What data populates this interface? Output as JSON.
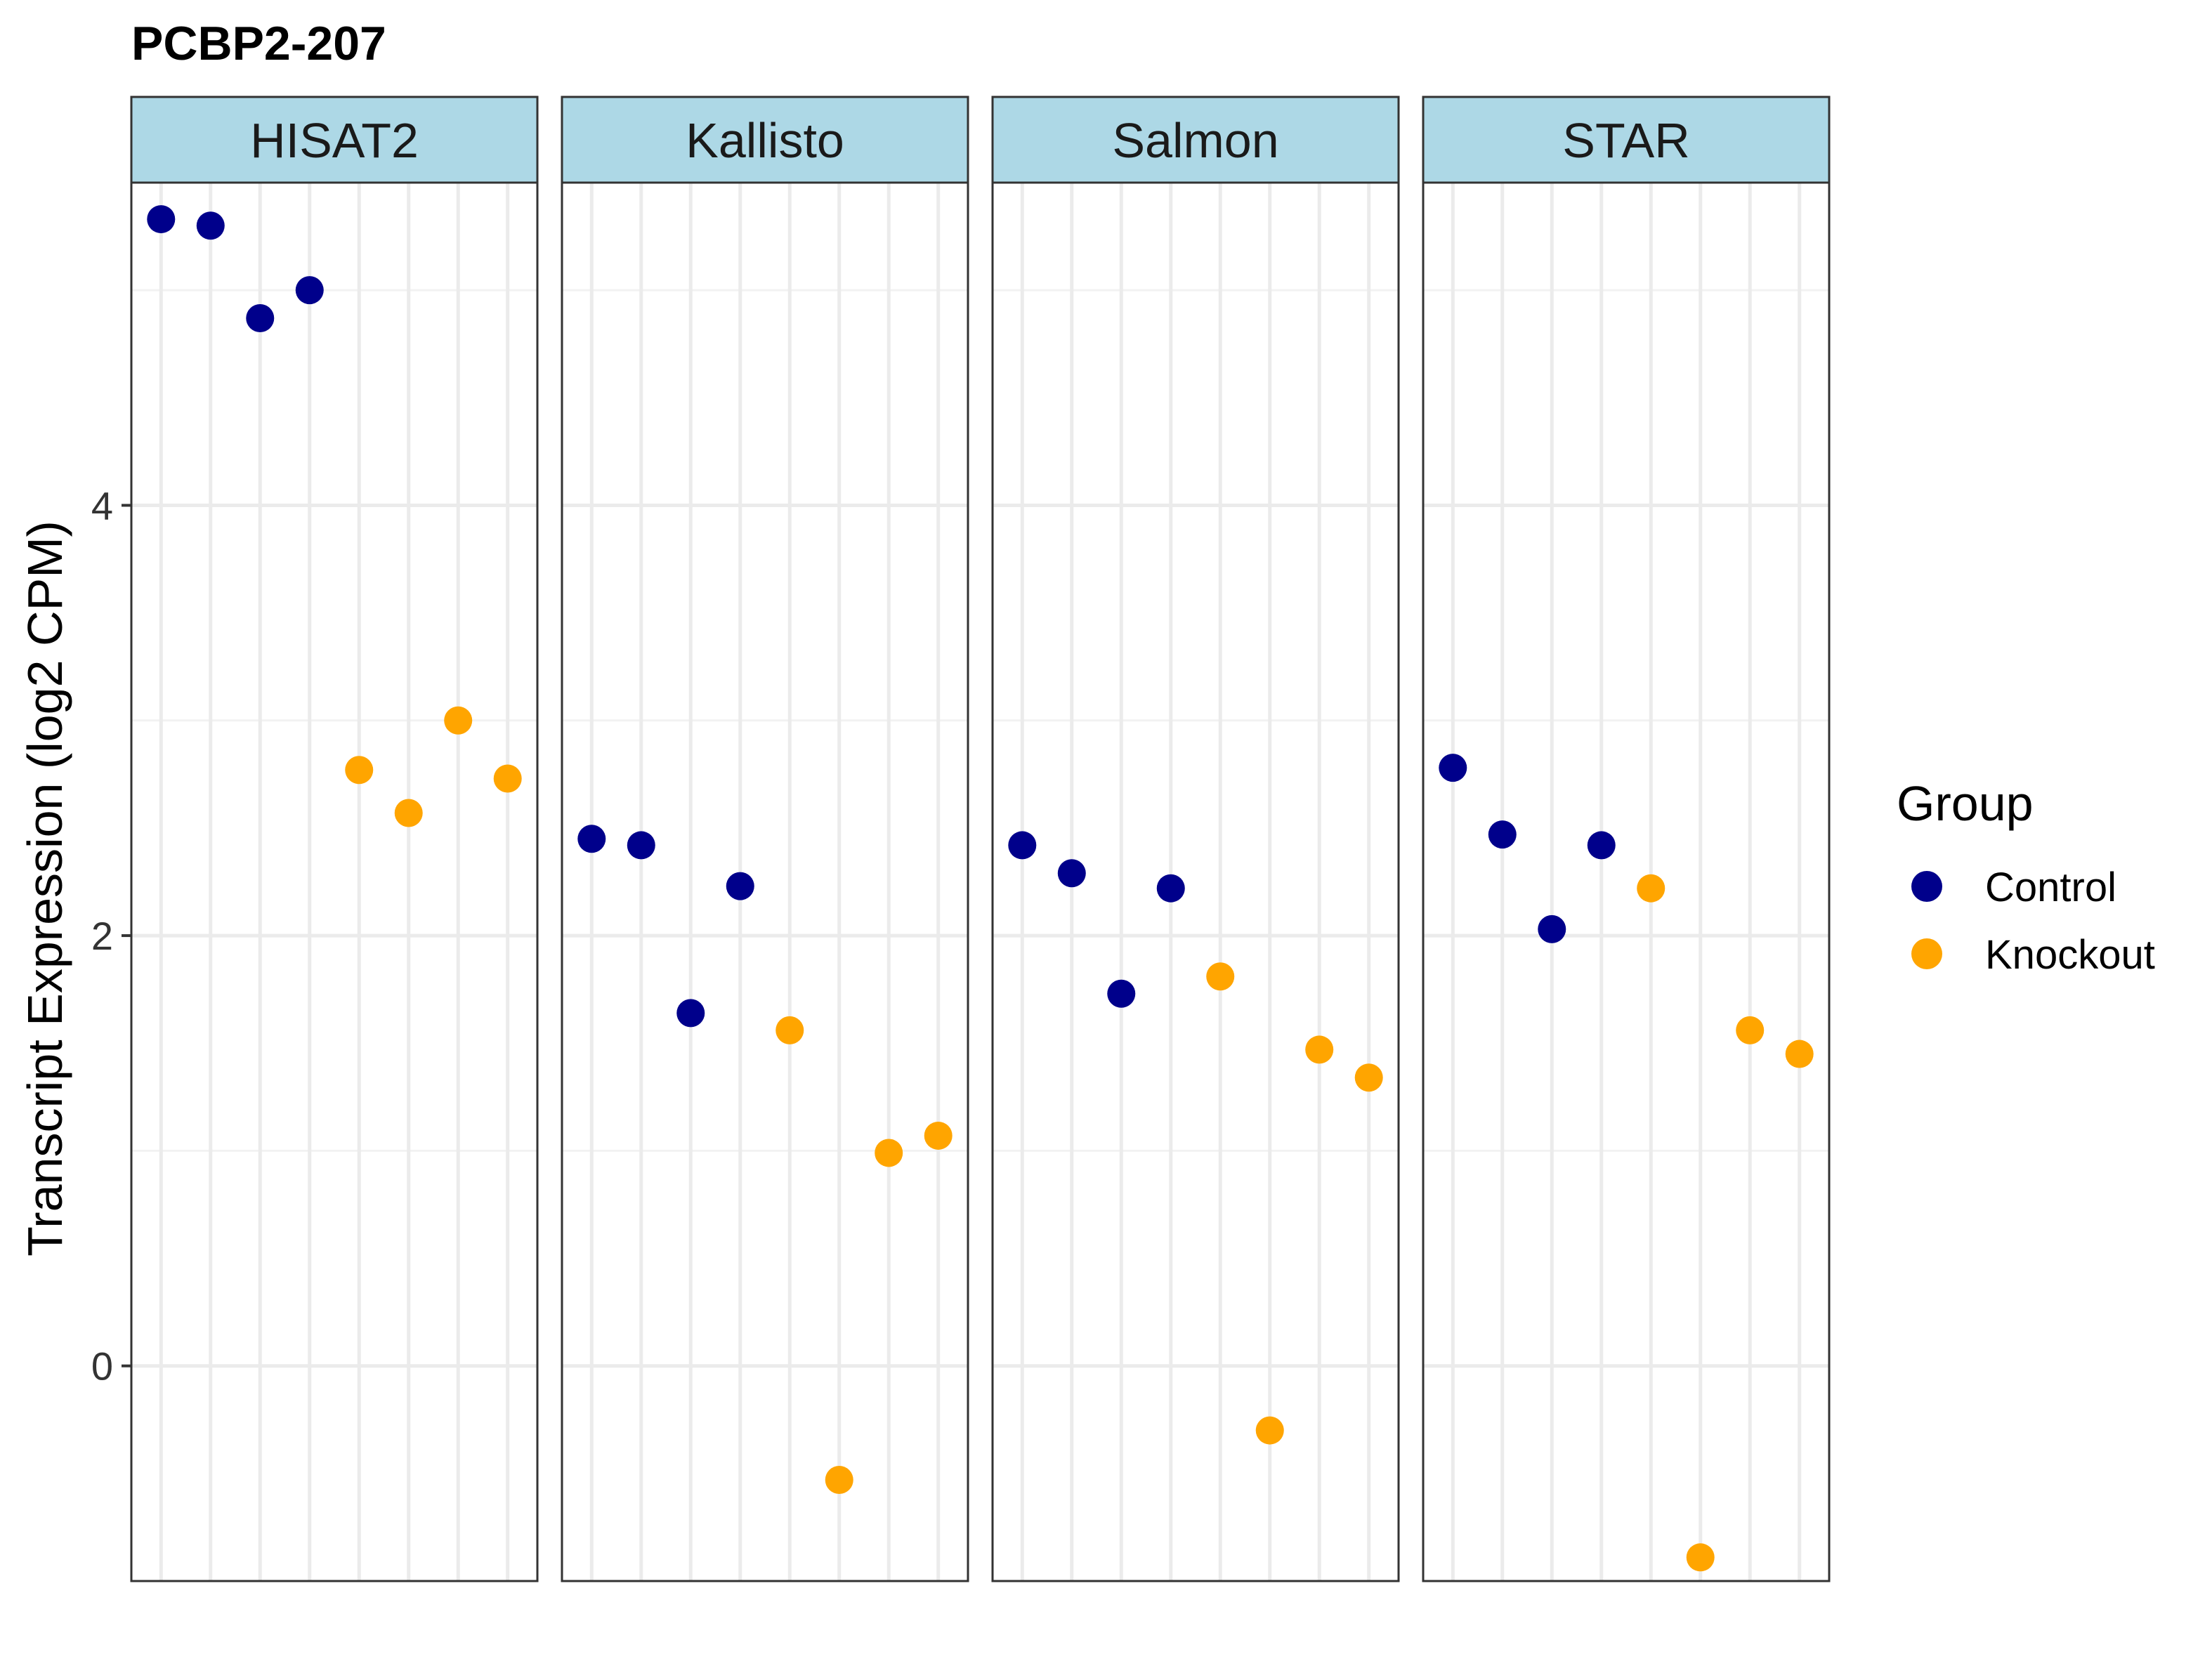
{
  "chart_data": {
    "type": "scatter",
    "title": "PCBP2-207",
    "xlabel": "",
    "ylabel": "Transcript Expression (log2 CPM)",
    "ylim": [
      -1.0,
      5.5
    ],
    "yticks": [
      0,
      2,
      4
    ],
    "samples_per_panel": 8,
    "grid": true,
    "legend": {
      "title": "Group",
      "position": "right",
      "entries": [
        {
          "name": "Control",
          "color": "#00008B"
        },
        {
          "name": "Knockout",
          "color": "#FFA500"
        }
      ]
    },
    "panels": [
      {
        "name": "HISAT2",
        "points": [
          {
            "x": 1,
            "y": 5.33,
            "group": "Control"
          },
          {
            "x": 2,
            "y": 5.3,
            "group": "Control"
          },
          {
            "x": 3,
            "y": 4.87,
            "group": "Control"
          },
          {
            "x": 4,
            "y": 5.0,
            "group": "Control"
          },
          {
            "x": 5,
            "y": 2.77,
            "group": "Knockout"
          },
          {
            "x": 6,
            "y": 2.57,
            "group": "Knockout"
          },
          {
            "x": 7,
            "y": 3.0,
            "group": "Knockout"
          },
          {
            "x": 8,
            "y": 2.73,
            "group": "Knockout"
          }
        ]
      },
      {
        "name": "Kallisto",
        "points": [
          {
            "x": 1,
            "y": 2.45,
            "group": "Control"
          },
          {
            "x": 2,
            "y": 2.42,
            "group": "Control"
          },
          {
            "x": 3,
            "y": 1.64,
            "group": "Control"
          },
          {
            "x": 4,
            "y": 2.23,
            "group": "Control"
          },
          {
            "x": 5,
            "y": 1.56,
            "group": "Knockout"
          },
          {
            "x": 6,
            "y": -0.53,
            "group": "Knockout"
          },
          {
            "x": 7,
            "y": 0.99,
            "group": "Knockout"
          },
          {
            "x": 8,
            "y": 1.07,
            "group": "Knockout"
          }
        ]
      },
      {
        "name": "Salmon",
        "points": [
          {
            "x": 1,
            "y": 2.42,
            "group": "Control"
          },
          {
            "x": 2,
            "y": 2.29,
            "group": "Control"
          },
          {
            "x": 3,
            "y": 1.73,
            "group": "Control"
          },
          {
            "x": 4,
            "y": 2.22,
            "group": "Control"
          },
          {
            "x": 5,
            "y": 1.81,
            "group": "Knockout"
          },
          {
            "x": 6,
            "y": -0.3,
            "group": "Knockout"
          },
          {
            "x": 7,
            "y": 1.47,
            "group": "Knockout"
          },
          {
            "x": 8,
            "y": 1.34,
            "group": "Knockout"
          }
        ]
      },
      {
        "name": "STAR",
        "points": [
          {
            "x": 1,
            "y": 2.78,
            "group": "Control"
          },
          {
            "x": 2,
            "y": 2.47,
            "group": "Control"
          },
          {
            "x": 3,
            "y": 2.03,
            "group": "Control"
          },
          {
            "x": 4,
            "y": 2.42,
            "group": "Control"
          },
          {
            "x": 5,
            "y": 2.22,
            "group": "Knockout"
          },
          {
            "x": 6,
            "y": -0.89,
            "group": "Knockout"
          },
          {
            "x": 7,
            "y": 1.56,
            "group": "Knockout"
          },
          {
            "x": 8,
            "y": 1.45,
            "group": "Knockout"
          }
        ]
      }
    ]
  }
}
